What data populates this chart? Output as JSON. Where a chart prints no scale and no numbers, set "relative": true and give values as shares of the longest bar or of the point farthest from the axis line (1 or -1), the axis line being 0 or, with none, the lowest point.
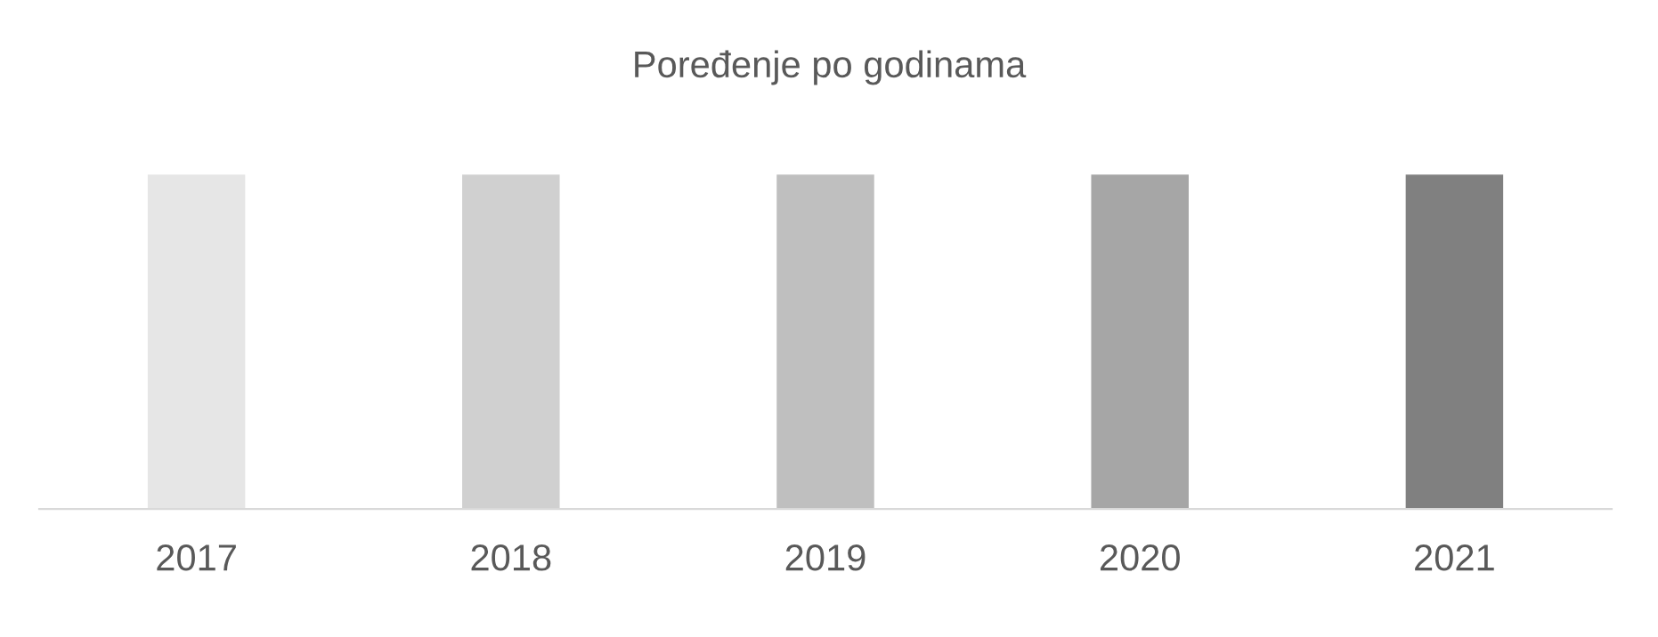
{
  "chart_data": {
    "type": "bar",
    "title": "Poređenje po godinama",
    "categories": [
      "2017",
      "2018",
      "2019",
      "2020",
      "2021"
    ],
    "values": [
      1,
      1,
      1,
      1,
      1
    ],
    "colors": [
      "#e6e6e6",
      "#d0d0d0",
      "#bfbfbf",
      "#a6a6a6",
      "#808080"
    ],
    "relative": true,
    "grid": false,
    "legend": false
  }
}
